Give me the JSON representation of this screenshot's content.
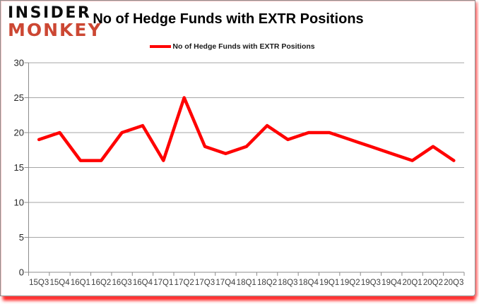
{
  "logo": {
    "line1": "INSIDER",
    "line2": "MONKEY"
  },
  "title": "No of Hedge Funds with EXTR Positions",
  "legend": {
    "label": "No of Hedge Funds with EXTR Positions"
  },
  "colors": {
    "line": "#ff0000",
    "gridline": "#a6a6a6",
    "axis": "#8c8c8c",
    "y_label_text": "#262626",
    "x_label_text": "#404040",
    "logo_red": "#cc4733",
    "border_glow": "#ff0000"
  },
  "chart_data": {
    "type": "line",
    "title": "No of Hedge Funds with EXTR Positions",
    "categories": [
      "15Q3",
      "15Q4",
      "16Q1",
      "16Q2",
      "16Q3",
      "16Q4",
      "17Q1",
      "17Q2",
      "17Q3",
      "17Q4",
      "18Q1",
      "18Q2",
      "18Q3",
      "18Q4",
      "19Q1",
      "19Q2",
      "19Q3",
      "19Q4",
      "20Q1",
      "20Q2",
      "20Q3"
    ],
    "values": [
      19,
      20,
      16,
      16,
      20,
      21,
      16,
      25,
      18,
      17,
      18,
      21,
      19,
      20,
      20,
      19,
      18,
      17,
      16,
      18,
      16
    ],
    "series_name": "No of Hedge Funds with EXTR Positions",
    "xlabel": "",
    "ylabel": "",
    "ylim": [
      0,
      30
    ],
    "yticks": [
      0,
      5,
      10,
      15,
      20,
      25,
      30
    ],
    "grid": true,
    "legend_position": "top"
  }
}
